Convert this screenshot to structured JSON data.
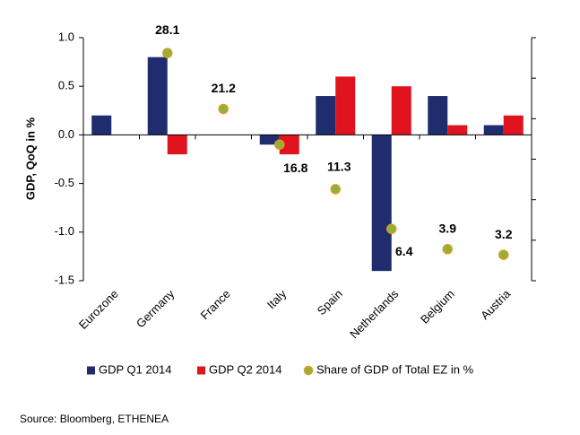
{
  "chart_data": {
    "type": "bar",
    "y_label": "GDP, QoQ in %",
    "source": "Source: Bloomberg, ETHENEA",
    "categories": [
      "Eurozone",
      "Germany",
      "France",
      "Italy",
      "Spain",
      "Netherlands",
      "Belgium",
      "Austria"
    ],
    "series": [
      {
        "name": "GDP Q1 2014",
        "color": "#1f2d6e",
        "type": "bar",
        "values": [
          0.2,
          0.8,
          0,
          -0.1,
          0.4,
          -1.4,
          0.4,
          0.1
        ]
      },
      {
        "name": "GDP Q2 2014",
        "color": "#e0141e",
        "type": "bar",
        "values": [
          null,
          -0.2,
          0,
          -0.2,
          0.6,
          0.5,
          0.1,
          0.2
        ]
      },
      {
        "name": "Share of GDP of Total EZ in %",
        "color": "#8cb43c",
        "type": "scatter",
        "axis": "y2",
        "values": [
          null,
          28.1,
          21.2,
          16.8,
          11.3,
          6.4,
          3.9,
          3.2
        ]
      }
    ],
    "ylim": [
      -1.5,
      1.0
    ],
    "yticks": [
      {
        "value": 1.0,
        "label": "1.0"
      },
      0.5,
      {
        "value": 0.0,
        "label": "0.0"
      },
      -0.5,
      {
        "value": -1.0,
        "label": "-1.0"
      },
      -1.5
    ],
    "y2lim": [
      0,
      30
    ],
    "y2ticks": [
      0,
      5,
      10,
      15,
      20,
      25,
      30
    ],
    "legend": "bottom"
  }
}
